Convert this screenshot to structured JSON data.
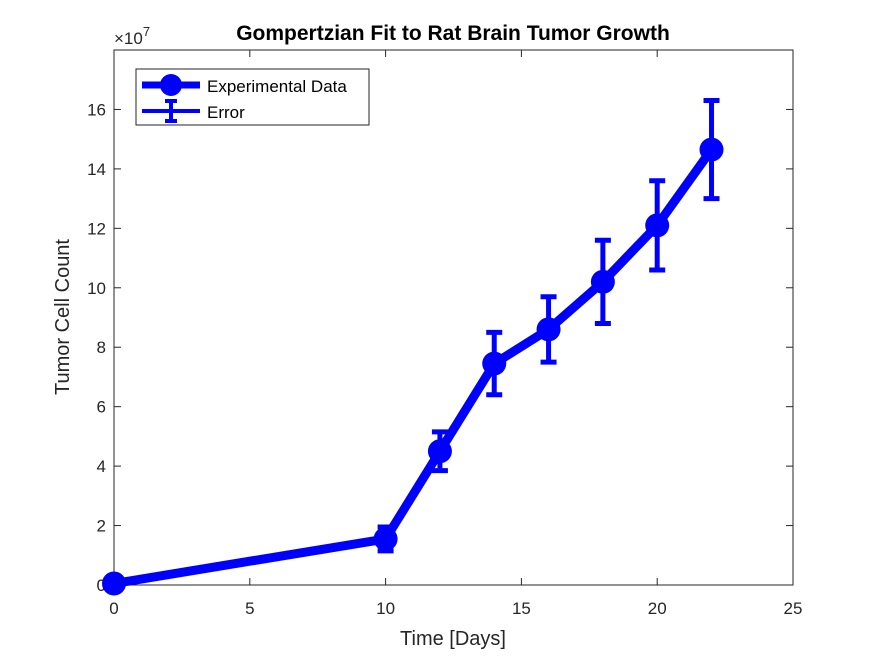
{
  "chart_data": {
    "type": "line",
    "title": "Gompertzian Fit to Rat Brain Tumor Growth",
    "xlabel": "Time [Days]",
    "ylabel": "Tumor Cell Count",
    "y_exponent_base": "×10",
    "y_exponent_power": "7",
    "xlim": [
      0,
      25
    ],
    "ylim": [
      0,
      18
    ],
    "x_ticks": [
      "0",
      "5",
      "10",
      "15",
      "20",
      "25"
    ],
    "y_ticks": [
      "0",
      "2",
      "4",
      "6",
      "8",
      "10",
      "12",
      "14",
      "16"
    ],
    "grid": false,
    "legend_position": "top-left",
    "series": [
      {
        "name": "Experimental Data",
        "error_name": "Error",
        "color": "#0000ff",
        "x": [
          0,
          10,
          12,
          14,
          16,
          18,
          20,
          22
        ],
        "y": [
          0.05,
          1.55,
          4.5,
          7.45,
          8.6,
          10.2,
          12.1,
          14.65
        ],
        "error": [
          0.05,
          0.4,
          0.65,
          1.05,
          1.1,
          1.4,
          1.5,
          1.65
        ]
      }
    ]
  }
}
